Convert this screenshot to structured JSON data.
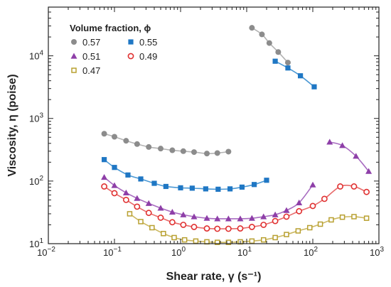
{
  "chart_data": {
    "type": "scatter",
    "title": "",
    "xlabel": "Shear rate, γ (s⁻¹)",
    "ylabel": "Viscosity, η (poise)",
    "xscale": "log",
    "yscale": "log",
    "xlim": [
      0.01,
      1000
    ],
    "ylim": [
      10,
      60000
    ],
    "x_ticks": [
      {
        "value": 0.01,
        "base": "10",
        "exp": "−2"
      },
      {
        "value": 0.1,
        "base": "10",
        "exp": "−1"
      },
      {
        "value": 1,
        "base": "10",
        "exp": "0"
      },
      {
        "value": 10,
        "base": "10",
        "exp": "1"
      },
      {
        "value": 100,
        "base": "10",
        "exp": "2"
      },
      {
        "value": 1000,
        "base": "10",
        "exp": "3"
      }
    ],
    "y_ticks": [
      {
        "value": 10,
        "base": "10",
        "exp": "1"
      },
      {
        "value": 100,
        "base": "10",
        "exp": "2"
      },
      {
        "value": 1000,
        "base": "10",
        "exp": "3"
      },
      {
        "value": 10000,
        "base": "10",
        "exp": "4"
      }
    ],
    "legend": {
      "title": "Volume fraction, ϕ",
      "placement": "top-left",
      "columns": 2
    },
    "series": [
      {
        "name": "0.57",
        "marker": "circle-filled",
        "color": "#8c8c8c",
        "line_color": "#b3b3b3",
        "points": [
          {
            "x": 0.07,
            "y": 570
          },
          {
            "x": 0.1,
            "y": 510
          },
          {
            "x": 0.15,
            "y": 440
          },
          {
            "x": 0.22,
            "y": 390
          },
          {
            "x": 0.33,
            "y": 350
          },
          {
            "x": 0.5,
            "y": 330
          },
          {
            "x": 0.75,
            "y": 310
          },
          {
            "x": 1.1,
            "y": 300
          },
          {
            "x": 1.6,
            "y": 290
          },
          {
            "x": 2.5,
            "y": 275
          },
          {
            "x": 3.6,
            "y": 280
          },
          {
            "x": 5.3,
            "y": 295
          }
        ],
        "points_upper": [
          {
            "x": 12,
            "y": 28000
          },
          {
            "x": 17,
            "y": 22000
          },
          {
            "x": 22,
            "y": 16000
          },
          {
            "x": 30,
            "y": 11500
          },
          {
            "x": 42,
            "y": 7800
          }
        ]
      },
      {
        "name": "0.55",
        "marker": "square-filled",
        "color": "#1f77c4",
        "line_color": "#4a98d4",
        "points": [
          {
            "x": 0.07,
            "y": 220
          },
          {
            "x": 0.1,
            "y": 165
          },
          {
            "x": 0.16,
            "y": 125
          },
          {
            "x": 0.25,
            "y": 108
          },
          {
            "x": 0.4,
            "y": 92
          },
          {
            "x": 0.6,
            "y": 82
          },
          {
            "x": 1,
            "y": 78
          },
          {
            "x": 1.5,
            "y": 77
          },
          {
            "x": 2.4,
            "y": 75
          },
          {
            "x": 3.7,
            "y": 74
          },
          {
            "x": 5.6,
            "y": 75
          },
          {
            "x": 8.5,
            "y": 80
          },
          {
            "x": 13,
            "y": 88
          },
          {
            "x": 20,
            "y": 103
          }
        ],
        "points_upper": [
          {
            "x": 27,
            "y": 8200
          },
          {
            "x": 42,
            "y": 6400
          },
          {
            "x": 65,
            "y": 4800
          },
          {
            "x": 105,
            "y": 3200
          }
        ]
      },
      {
        "name": "0.51",
        "marker": "triangle-filled",
        "color": "#8e3fa8",
        "line_color": "#a86cc0",
        "points": [
          {
            "x": 0.07,
            "y": 115
          },
          {
            "x": 0.1,
            "y": 85
          },
          {
            "x": 0.15,
            "y": 65
          },
          {
            "x": 0.22,
            "y": 53
          },
          {
            "x": 0.33,
            "y": 44
          },
          {
            "x": 0.5,
            "y": 37
          },
          {
            "x": 0.75,
            "y": 32
          },
          {
            "x": 1.1,
            "y": 29
          },
          {
            "x": 1.6,
            "y": 27
          },
          {
            "x": 2.5,
            "y": 25.5
          },
          {
            "x": 3.6,
            "y": 25
          },
          {
            "x": 5.3,
            "y": 25
          },
          {
            "x": 8,
            "y": 25
          },
          {
            "x": 12,
            "y": 25.5
          },
          {
            "x": 18,
            "y": 27
          },
          {
            "x": 27,
            "y": 29
          },
          {
            "x": 40,
            "y": 34
          },
          {
            "x": 62,
            "y": 45
          },
          {
            "x": 100,
            "y": 87
          }
        ],
        "points_upper": [
          {
            "x": 180,
            "y": 420
          },
          {
            "x": 280,
            "y": 370
          },
          {
            "x": 450,
            "y": 250
          },
          {
            "x": 700,
            "y": 143
          }
        ]
      },
      {
        "name": "0.49",
        "marker": "circle-open",
        "color": "#e03030",
        "line_color": "#e86a6a",
        "points": [
          {
            "x": 0.07,
            "y": 82
          },
          {
            "x": 0.1,
            "y": 64
          },
          {
            "x": 0.15,
            "y": 50
          },
          {
            "x": 0.22,
            "y": 39
          },
          {
            "x": 0.33,
            "y": 31
          },
          {
            "x": 0.5,
            "y": 26
          },
          {
            "x": 0.75,
            "y": 22
          },
          {
            "x": 1.1,
            "y": 20
          },
          {
            "x": 1.6,
            "y": 18.5
          },
          {
            "x": 2.5,
            "y": 17.5
          },
          {
            "x": 3.6,
            "y": 17.3
          },
          {
            "x": 5.3,
            "y": 17.3
          },
          {
            "x": 8,
            "y": 17.5
          },
          {
            "x": 12,
            "y": 18.5
          },
          {
            "x": 18,
            "y": 20
          },
          {
            "x": 27,
            "y": 23
          },
          {
            "x": 40,
            "y": 27
          },
          {
            "x": 62,
            "y": 33
          },
          {
            "x": 100,
            "y": 40
          },
          {
            "x": 150,
            "y": 52
          },
          {
            "x": 260,
            "y": 82
          },
          {
            "x": 420,
            "y": 82
          },
          {
            "x": 650,
            "y": 67
          }
        ]
      },
      {
        "name": "0.47",
        "marker": "square-open",
        "color": "#b8a030",
        "line_color": "#ccb860",
        "points": [
          {
            "x": 0.17,
            "y": 30
          },
          {
            "x": 0.25,
            "y": 22.5
          },
          {
            "x": 0.37,
            "y": 18
          },
          {
            "x": 0.55,
            "y": 14.5
          },
          {
            "x": 0.8,
            "y": 12.5
          },
          {
            "x": 1.15,
            "y": 11.5
          },
          {
            "x": 1.7,
            "y": 11
          },
          {
            "x": 2.5,
            "y": 10.7
          },
          {
            "x": 3.6,
            "y": 10.5
          },
          {
            "x": 5.3,
            "y": 10.5
          },
          {
            "x": 8,
            "y": 10.7
          },
          {
            "x": 12,
            "y": 11
          },
          {
            "x": 18,
            "y": 11.5
          },
          {
            "x": 27,
            "y": 12.5
          },
          {
            "x": 40,
            "y": 14
          },
          {
            "x": 60,
            "y": 16
          },
          {
            "x": 90,
            "y": 18
          },
          {
            "x": 130,
            "y": 20.5
          },
          {
            "x": 190,
            "y": 24
          },
          {
            "x": 280,
            "y": 26.5
          },
          {
            "x": 420,
            "y": 27
          },
          {
            "x": 650,
            "y": 25.5
          }
        ]
      }
    ]
  }
}
